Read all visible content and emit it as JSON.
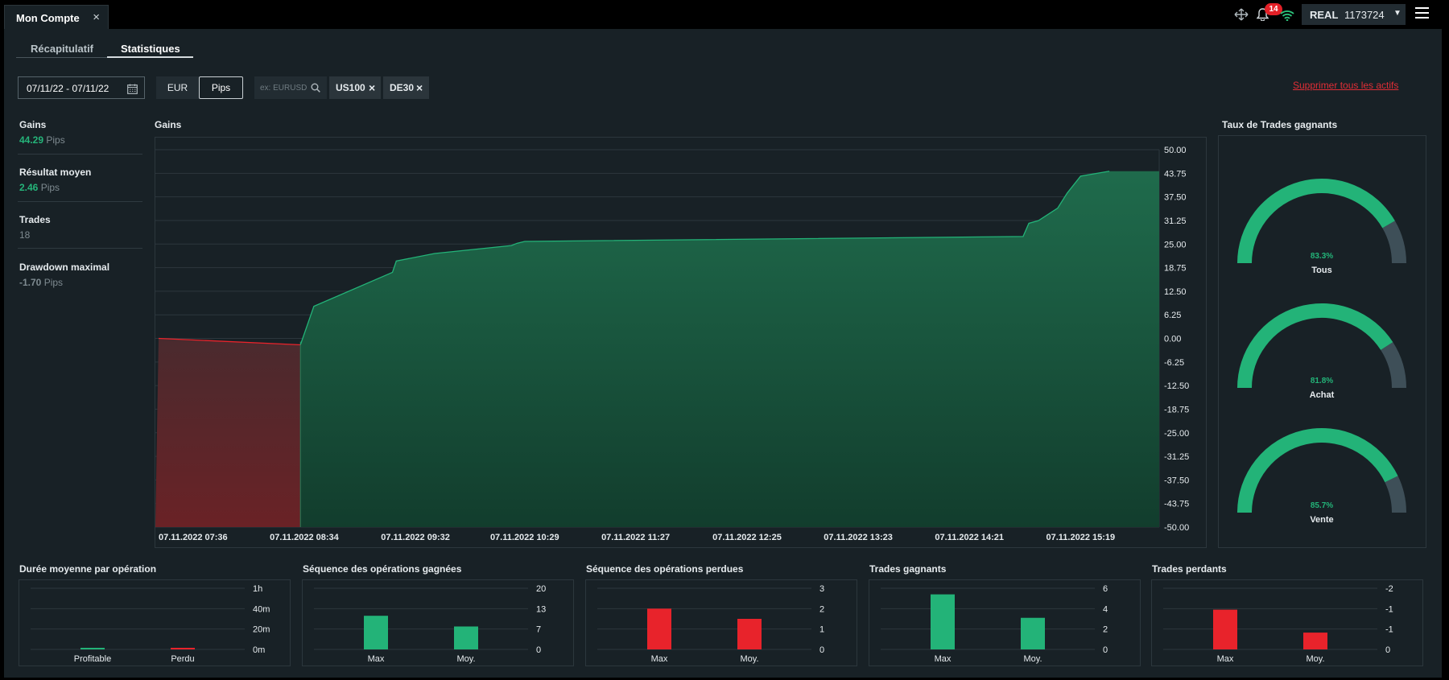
{
  "window": {
    "tab_title": "Mon Compte",
    "close_glyph": "×"
  },
  "header": {
    "notifications_count": "14",
    "account_type": "REAL",
    "account_number": "1173724",
    "icons": [
      "transfer-icon",
      "bell-icon",
      "wifi-icon",
      "hamburger-menu-icon"
    ]
  },
  "subtabs": {
    "summary": "Récapitulatif",
    "stats": "Statistiques",
    "active": "Statistiques"
  },
  "filters": {
    "date_range": "07/11/22 - 07/11/22",
    "currency_options": [
      "EUR",
      "Pips"
    ],
    "selected_unit": "Pips",
    "search_placeholder": "ex: EURUSD",
    "chips": [
      "US100",
      "DE30"
    ],
    "remove_glyph": "×",
    "clear_all": "Supprimer tous les actifs"
  },
  "stats": [
    {
      "label": "Gains",
      "value": "44.29",
      "unit": "Pips",
      "color": "#25b47a"
    },
    {
      "label": "Résultat moyen",
      "value": "2.46",
      "unit": "Pips",
      "color": "#25b47a"
    },
    {
      "label": "Trades",
      "value": "18",
      "unit": "",
      "color": "#7e8a90"
    },
    {
      "label": "Drawdown maximal",
      "value": "-1.70",
      "unit": "Pips",
      "color": "#7e8a90"
    }
  ],
  "colors": {
    "green": "#23b378",
    "red": "#e8232b",
    "gauge_rest": "#3e4f58",
    "grid": "#2c373d"
  },
  "chart_data": [
    {
      "type": "area",
      "title": "Gains",
      "x_ticks": [
        "07.11.2022 07:36",
        "07.11.2022 08:34",
        "07.11.2022 09:32",
        "07.11.2022 10:29",
        "07.11.2022 11:27",
        "07.11.2022 12:25",
        "07.11.2022 13:23",
        "07.11.2022 14:21",
        "07.11.2022 15:19"
      ],
      "y_ticks": [
        "50.00",
        "43.75",
        "37.50",
        "31.25",
        "25.00",
        "18.75",
        "12.50",
        "6.25",
        "0.00",
        "-6.25",
        "-12.50",
        "-18.75",
        "-25.00",
        "-31.25",
        "-37.50",
        "-43.75",
        "-50.00"
      ],
      "ylim": [
        -50,
        50
      ],
      "grid": true,
      "x": [
        "07:36",
        "08:50",
        "08:57",
        "09:38",
        "09:40",
        "10:00",
        "10:40",
        "10:43",
        "10:47",
        "15:07",
        "15:10",
        "15:15",
        "15:25",
        "15:30",
        "15:37",
        "15:52"
      ],
      "y": [
        0,
        -1.7,
        8.5,
        17.5,
        20.5,
        22.5,
        24.6,
        25.2,
        25.7,
        27.0,
        30.5,
        31.2,
        34.5,
        38.5,
        43.0,
        44.29
      ]
    },
    {
      "type": "gauge",
      "title": "Taux de Trades gagnants",
      "label": "Tous",
      "value": 83.3,
      "text": "83.3%"
    },
    {
      "type": "gauge",
      "label": "Achat",
      "value": 81.8,
      "text": "81.8%"
    },
    {
      "type": "gauge",
      "label": "Vente",
      "value": 85.7,
      "text": "85.7%"
    },
    {
      "type": "bar",
      "title": "Durée moyenne par opération",
      "categories": [
        "Profitable",
        "Perdu"
      ],
      "values": [
        0.5,
        0.5
      ],
      "y_ticks": [
        "1h",
        "40m",
        "20m",
        "0m"
      ],
      "ylim": [
        0,
        60
      ],
      "colors": [
        "green",
        "red"
      ]
    },
    {
      "type": "bar",
      "title": "Séquence des opérations gagnées",
      "categories": [
        "Max",
        "Moy."
      ],
      "values": [
        11,
        7.5
      ],
      "y_ticks": [
        "20",
        "13",
        "7",
        "0"
      ],
      "ylim": [
        0,
        20
      ],
      "colors": [
        "green",
        "green"
      ]
    },
    {
      "type": "bar",
      "title": "Séquence des opérations perdues",
      "categories": [
        "Max",
        "Moy."
      ],
      "values": [
        2,
        1.5
      ],
      "y_ticks": [
        "3",
        "2",
        "1",
        "0"
      ],
      "ylim": [
        0,
        3
      ],
      "colors": [
        "red",
        "red"
      ]
    },
    {
      "type": "bar",
      "title": "Trades gagnants",
      "categories": [
        "Max",
        "Moy."
      ],
      "values": [
        5.4,
        3.1
      ],
      "y_ticks": [
        "6",
        "4",
        "2",
        "0"
      ],
      "ylim": [
        0,
        6
      ],
      "colors": [
        "green",
        "green"
      ]
    },
    {
      "type": "bar",
      "title": "Trades perdants",
      "categories": [
        "Max",
        "Moy."
      ],
      "values": [
        -1.3,
        -0.55
      ],
      "y_ticks": [
        "-2",
        "-1",
        "-1",
        "0"
      ],
      "ylim": [
        -2,
        0
      ],
      "colors": [
        "red",
        "red"
      ]
    }
  ]
}
